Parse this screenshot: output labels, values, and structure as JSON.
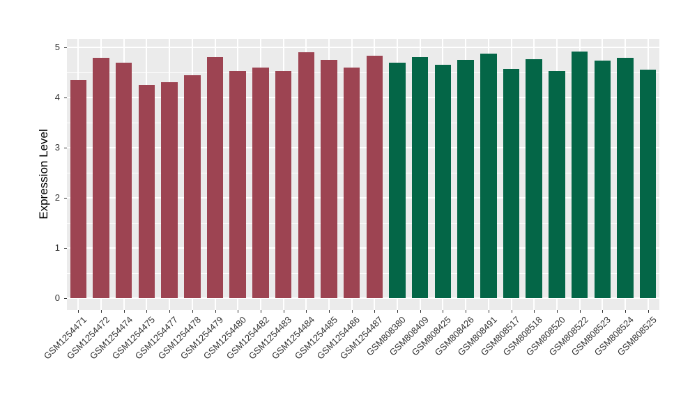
{
  "chart_data": {
    "type": "bar",
    "title": "",
    "xlabel": "",
    "ylabel": "Expression Level",
    "ylim": [
      0,
      5
    ],
    "yticks": [
      0,
      1,
      2,
      3,
      4,
      5
    ],
    "yticks_minor": [
      0.5,
      1.5,
      2.5,
      3.5,
      4.5
    ],
    "grid": true,
    "legend": "none",
    "categories": [
      "GSM1254471",
      "GSM1254472",
      "GSM1254474",
      "GSM1254475",
      "GSM1254477",
      "GSM1254478",
      "GSM1254479",
      "GSM1254480",
      "GSM1254482",
      "GSM1254483",
      "GSM1254484",
      "GSM1254485",
      "GSM1254486",
      "GSM1254487",
      "GSM808380",
      "GSM808409",
      "GSM808425",
      "GSM808426",
      "GSM808491",
      "GSM808517",
      "GSM808518",
      "GSM808520",
      "GSM808522",
      "GSM808523",
      "GSM808524",
      "GSM808525"
    ],
    "values": [
      4.35,
      4.79,
      4.69,
      4.25,
      4.31,
      4.45,
      4.81,
      4.53,
      4.6,
      4.53,
      4.9,
      4.75,
      4.6,
      4.83,
      4.69,
      4.8,
      4.65,
      4.75,
      4.88,
      4.57,
      4.77,
      4.53,
      4.91,
      4.74,
      4.79,
      4.55
    ],
    "group_split_index": 14,
    "group_colors": [
      "#9D4452",
      "#046647"
    ],
    "colors": {
      "panel_background": "#EBEBEB",
      "gridline": "#FFFFFF",
      "axis_text": "#333333",
      "figure_background": "#FFFFFF"
    }
  }
}
